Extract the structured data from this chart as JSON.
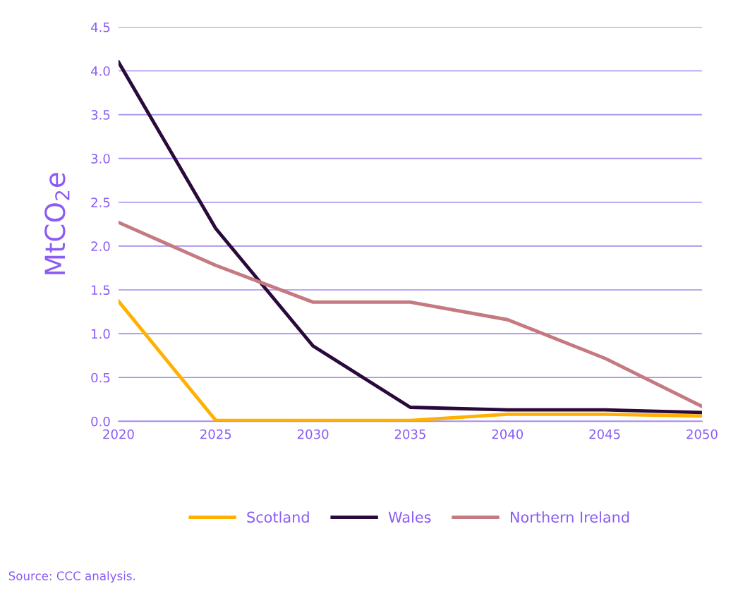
{
  "chart_data": {
    "type": "line",
    "ylabel": "MtCO$_{2}$e",
    "x": [
      2020,
      2025,
      2030,
      2035,
      2040,
      2045,
      2050
    ],
    "series": [
      {
        "name": "Scotland",
        "color": "#ffb000",
        "values": [
          1.37,
          0.01,
          0.01,
          0.01,
          0.08,
          0.08,
          0.06
        ]
      },
      {
        "name": "Wales",
        "color": "#2a0a3a",
        "values": [
          4.1,
          2.2,
          0.86,
          0.16,
          0.13,
          0.13,
          0.1
        ]
      },
      {
        "name": "Northern Ireland",
        "color": "#c47a80",
        "values": [
          2.27,
          1.78,
          1.36,
          1.36,
          1.16,
          0.72,
          0.17
        ]
      }
    ],
    "xlim": [
      2020,
      2050
    ],
    "xticks": [
      2020,
      2025,
      2030,
      2035,
      2040,
      2045,
      2050
    ],
    "ylim": [
      0,
      4.5
    ],
    "yticks": [
      {
        "value": 0,
        "label": "0.0"
      },
      {
        "value": 0.5,
        "label": "0.5"
      },
      {
        "value": 1,
        "label": "1.0"
      },
      {
        "value": 1.5,
        "label": "1.5"
      },
      {
        "value": 2,
        "label": "2.0"
      },
      {
        "value": 2.5,
        "label": "2.5"
      },
      {
        "value": 3,
        "label": "3.0"
      },
      {
        "value": 3.5,
        "label": "3.5"
      },
      {
        "value": 4,
        "label": "4.0"
      },
      {
        "value": 4.5,
        "label": "4.5"
      }
    ],
    "grid": "y",
    "legend": "bottom",
    "marker": "none",
    "line_style": "solid",
    "annotations": [
      "Source: CCC analysis."
    ]
  }
}
